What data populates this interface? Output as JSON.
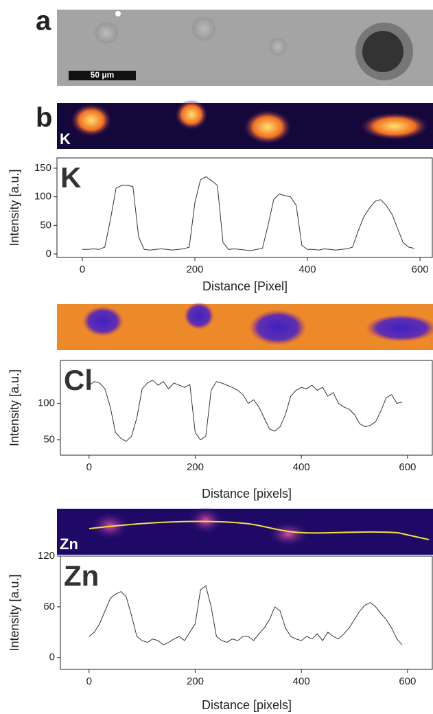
{
  "figure": {
    "panel_labels": [
      "a",
      "b"
    ],
    "scale_bar": "50 μm",
    "image_labels": [
      "K",
      "Zn"
    ]
  },
  "chart_data": [
    {
      "type": "line",
      "title": "K",
      "x_label": "Distance [Pixel]",
      "y_label": "Intensity [a.u.]",
      "x": [
        0,
        10,
        20,
        30,
        40,
        50,
        60,
        70,
        80,
        90,
        100,
        110,
        120,
        130,
        140,
        150,
        160,
        170,
        180,
        190,
        200,
        210,
        220,
        230,
        240,
        250,
        260,
        270,
        280,
        290,
        300,
        310,
        320,
        330,
        340,
        350,
        360,
        370,
        380,
        390,
        400,
        410,
        420,
        430,
        440,
        450,
        460,
        470,
        480,
        490,
        500,
        510,
        520,
        530,
        540,
        550,
        560,
        570,
        580,
        590
      ],
      "series": [
        {
          "name": "K",
          "color": "#333333",
          "values": [
            8,
            8,
            9,
            8,
            12,
            60,
            115,
            120,
            120,
            118,
            30,
            8,
            7,
            8,
            9,
            8,
            7,
            8,
            9,
            12,
            90,
            130,
            135,
            128,
            120,
            20,
            8,
            9,
            8,
            7,
            6,
            8,
            10,
            50,
            95,
            105,
            102,
            100,
            85,
            15,
            8,
            8,
            7,
            9,
            8,
            7,
            8,
            9,
            12,
            40,
            65,
            80,
            92,
            95,
            85,
            70,
            45,
            20,
            12,
            10
          ]
        }
      ],
      "xlim": [
        -45,
        623
      ],
      "xticks": [
        0,
        200,
        400,
        600
      ],
      "ylim": [
        -6,
        168
      ],
      "yticks": [
        0,
        50,
        100,
        150
      ]
    },
    {
      "type": "line",
      "title": "Cl",
      "x_label": "Distance [pixels]",
      "y_label": "Intensity [a.u.]",
      "x": [
        0,
        10,
        20,
        30,
        40,
        50,
        60,
        70,
        80,
        90,
        100,
        110,
        120,
        130,
        140,
        150,
        160,
        170,
        180,
        190,
        200,
        210,
        220,
        230,
        240,
        250,
        260,
        270,
        280,
        290,
        300,
        310,
        320,
        330,
        340,
        350,
        360,
        370,
        380,
        390,
        400,
        410,
        420,
        430,
        440,
        450,
        460,
        470,
        480,
        490,
        500,
        510,
        520,
        530,
        540,
        550,
        560,
        570,
        580,
        590
      ],
      "series": [
        {
          "name": "Cl",
          "color": "#333333",
          "values": [
            125,
            130,
            128,
            120,
            95,
            60,
            52,
            48,
            55,
            80,
            120,
            128,
            132,
            125,
            130,
            120,
            128,
            125,
            122,
            126,
            60,
            50,
            55,
            118,
            130,
            128,
            125,
            122,
            118,
            112,
            100,
            105,
            95,
            80,
            65,
            62,
            68,
            85,
            110,
            118,
            122,
            120,
            125,
            118,
            122,
            110,
            115,
            100,
            95,
            92,
            85,
            72,
            68,
            70,
            75,
            90,
            108,
            112,
            100,
            102
          ]
        }
      ],
      "xlim": [
        -54,
        648
      ],
      "xticks": [
        0,
        200,
        400,
        600
      ],
      "ylim": [
        29,
        159
      ],
      "yticks": [
        50,
        100
      ]
    },
    {
      "type": "line",
      "title": "Zn",
      "x_label": "Distance [pixels]",
      "y_label": "Intensity [a.u.]",
      "x": [
        0,
        10,
        20,
        30,
        40,
        50,
        60,
        70,
        80,
        90,
        100,
        110,
        120,
        130,
        140,
        150,
        160,
        170,
        180,
        190,
        200,
        210,
        220,
        230,
        240,
        250,
        260,
        270,
        280,
        290,
        300,
        310,
        320,
        330,
        340,
        350,
        360,
        370,
        380,
        390,
        400,
        410,
        420,
        430,
        440,
        450,
        460,
        470,
        480,
        490,
        500,
        510,
        520,
        530,
        540,
        550,
        560,
        570,
        580,
        590
      ],
      "series": [
        {
          "name": "Zn",
          "color": "#333333",
          "values": [
            25,
            30,
            40,
            55,
            70,
            75,
            78,
            72,
            50,
            25,
            20,
            18,
            22,
            20,
            15,
            18,
            22,
            25,
            20,
            30,
            40,
            80,
            85,
            60,
            25,
            20,
            18,
            22,
            20,
            25,
            25,
            20,
            28,
            35,
            45,
            60,
            55,
            35,
            25,
            22,
            20,
            25,
            22,
            28,
            20,
            30,
            25,
            22,
            28,
            35,
            45,
            55,
            62,
            65,
            60,
            52,
            45,
            35,
            22,
            15
          ]
        }
      ],
      "xlim": [
        -54,
        648
      ],
      "xticks": [
        0,
        200,
        400,
        600
      ],
      "ylim": [
        -14,
        120
      ],
      "yticks": [
        0,
        60,
        120
      ]
    }
  ]
}
